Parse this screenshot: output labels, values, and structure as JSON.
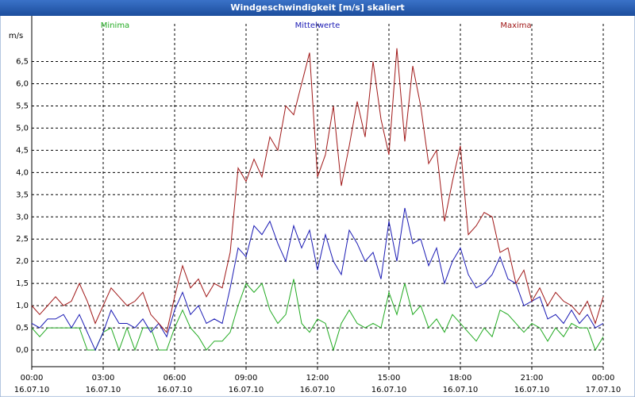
{
  "chart_data": {
    "type": "line",
    "title": "Windgeschwindigkeit [m/s] skaliert",
    "ylabel": "m/s",
    "x": [
      0,
      20,
      40,
      60,
      80,
      100,
      120,
      140,
      160,
      180,
      200,
      220,
      240,
      260,
      280,
      300,
      320,
      340,
      360,
      380,
      400,
      420,
      440,
      460,
      480,
      500,
      520,
      540,
      560,
      580,
      600,
      620,
      640,
      660,
      680,
      700,
      720,
      740,
      760,
      780,
      800,
      820,
      840,
      860,
      880,
      900,
      920,
      940,
      960,
      980,
      1000,
      1020,
      1040,
      1060,
      1080,
      1100,
      1120,
      1140,
      1160,
      1180,
      1200,
      1220,
      1240,
      1260,
      1280,
      1300,
      1320,
      1340,
      1360,
      1380,
      1400,
      1420,
      1440
    ],
    "series": [
      {
        "name": "Minima",
        "color": "#22aa22",
        "values": [
          0.5,
          0.3,
          0.5,
          0.5,
          0.5,
          0.5,
          0.5,
          0.0,
          0.0,
          0.4,
          0.5,
          0.0,
          0.5,
          0.0,
          0.5,
          0.5,
          0.0,
          0.0,
          0.5,
          0.9,
          0.5,
          0.3,
          0.0,
          0.2,
          0.2,
          0.4,
          1.0,
          1.5,
          1.3,
          1.5,
          0.9,
          0.6,
          0.8,
          1.6,
          0.6,
          0.4,
          0.7,
          0.6,
          0.0,
          0.6,
          0.9,
          0.6,
          0.5,
          0.6,
          0.5,
          1.3,
          0.8,
          1.5,
          0.8,
          1.0,
          0.5,
          0.7,
          0.4,
          0.8,
          0.6,
          0.4,
          0.2,
          0.5,
          0.3,
          0.9,
          0.8,
          0.6,
          0.4,
          0.6,
          0.5,
          0.2,
          0.5,
          0.3,
          0.6,
          0.5,
          0.5,
          0.0,
          0.3
        ]
      },
      {
        "name": "Mittelwerte",
        "color": "#1a1ab4",
        "values": [
          0.6,
          0.5,
          0.7,
          0.7,
          0.8,
          0.5,
          0.8,
          0.4,
          0.0,
          0.4,
          0.9,
          0.6,
          0.6,
          0.5,
          0.7,
          0.4,
          0.6,
          0.3,
          0.9,
          1.3,
          0.8,
          1.0,
          0.6,
          0.7,
          0.6,
          1.4,
          2.3,
          2.1,
          2.8,
          2.6,
          2.9,
          2.4,
          2.0,
          2.8,
          2.3,
          2.7,
          1.8,
          2.6,
          2.0,
          1.7,
          2.7,
          2.4,
          2.0,
          2.2,
          1.6,
          2.9,
          2.0,
          3.2,
          2.4,
          2.5,
          1.9,
          2.3,
          1.5,
          2.0,
          2.3,
          1.7,
          1.4,
          1.5,
          1.7,
          2.1,
          1.6,
          1.5,
          1.0,
          1.1,
          1.2,
          0.7,
          0.8,
          0.6,
          0.9,
          0.6,
          0.8,
          0.5,
          0.6
        ]
      },
      {
        "name": "Maxima",
        "color": "#a01818",
        "values": [
          1.0,
          0.8,
          1.0,
          1.2,
          1.0,
          1.1,
          1.5,
          1.1,
          0.6,
          1.0,
          1.4,
          1.2,
          1.0,
          1.1,
          1.3,
          0.8,
          0.6,
          0.4,
          1.2,
          1.9,
          1.4,
          1.6,
          1.2,
          1.5,
          1.4,
          2.2,
          4.1,
          3.8,
          4.3,
          3.9,
          4.8,
          4.5,
          5.5,
          5.3,
          6.0,
          6.7,
          3.9,
          4.4,
          5.5,
          3.7,
          4.6,
          5.6,
          4.8,
          6.5,
          5.2,
          4.4,
          6.8,
          4.7,
          6.4,
          5.5,
          4.2,
          4.5,
          2.9,
          3.8,
          4.6,
          2.6,
          2.8,
          3.1,
          3.0,
          2.2,
          2.3,
          1.5,
          1.8,
          1.1,
          1.4,
          1.0,
          1.3,
          1.1,
          1.0,
          0.8,
          1.1,
          0.6,
          1.2
        ]
      }
    ],
    "xlim": [
      0,
      1440
    ],
    "xticks": [
      {
        "value": 0,
        "label": "00:00"
      },
      {
        "value": 180,
        "label": "03:00"
      },
      {
        "value": 360,
        "label": "06:00"
      },
      {
        "value": 540,
        "label": "09:00"
      },
      {
        "value": 720,
        "label": "12:00"
      },
      {
        "value": 900,
        "label": "15:00"
      },
      {
        "value": 1080,
        "label": "18:00"
      },
      {
        "value": 1260,
        "label": "21:00"
      },
      {
        "value": 1440,
        "label": "00:00"
      }
    ],
    "xtick_dates": [
      "16.07.10",
      "16.07.10",
      "16.07.10",
      "16.07.10",
      "16.07.10",
      "16.07.10",
      "16.07.10",
      "16.07.10",
      "17.07.10"
    ],
    "ylim": [
      -0.375,
      7.35
    ],
    "yticks": [
      {
        "value": 0,
        "label": "0,0"
      },
      {
        "value": 0.5,
        "label": "0,5"
      },
      {
        "value": 1,
        "label": "1,0"
      },
      {
        "value": 1.5,
        "label": "1,5"
      },
      {
        "value": 2,
        "label": "2,0"
      },
      {
        "value": 2.5,
        "label": "2,5"
      },
      {
        "value": 3,
        "label": "3,0"
      },
      {
        "value": 3.5,
        "label": "3,5"
      },
      {
        "value": 4,
        "label": "4,0"
      },
      {
        "value": 4.5,
        "label": "4,5"
      },
      {
        "value": 5,
        "label": "5,0"
      },
      {
        "value": 5.5,
        "label": "5,5"
      },
      {
        "value": 6,
        "label": "6,0"
      },
      {
        "value": 6.5,
        "label": "6,5"
      }
    ],
    "grid": true
  }
}
